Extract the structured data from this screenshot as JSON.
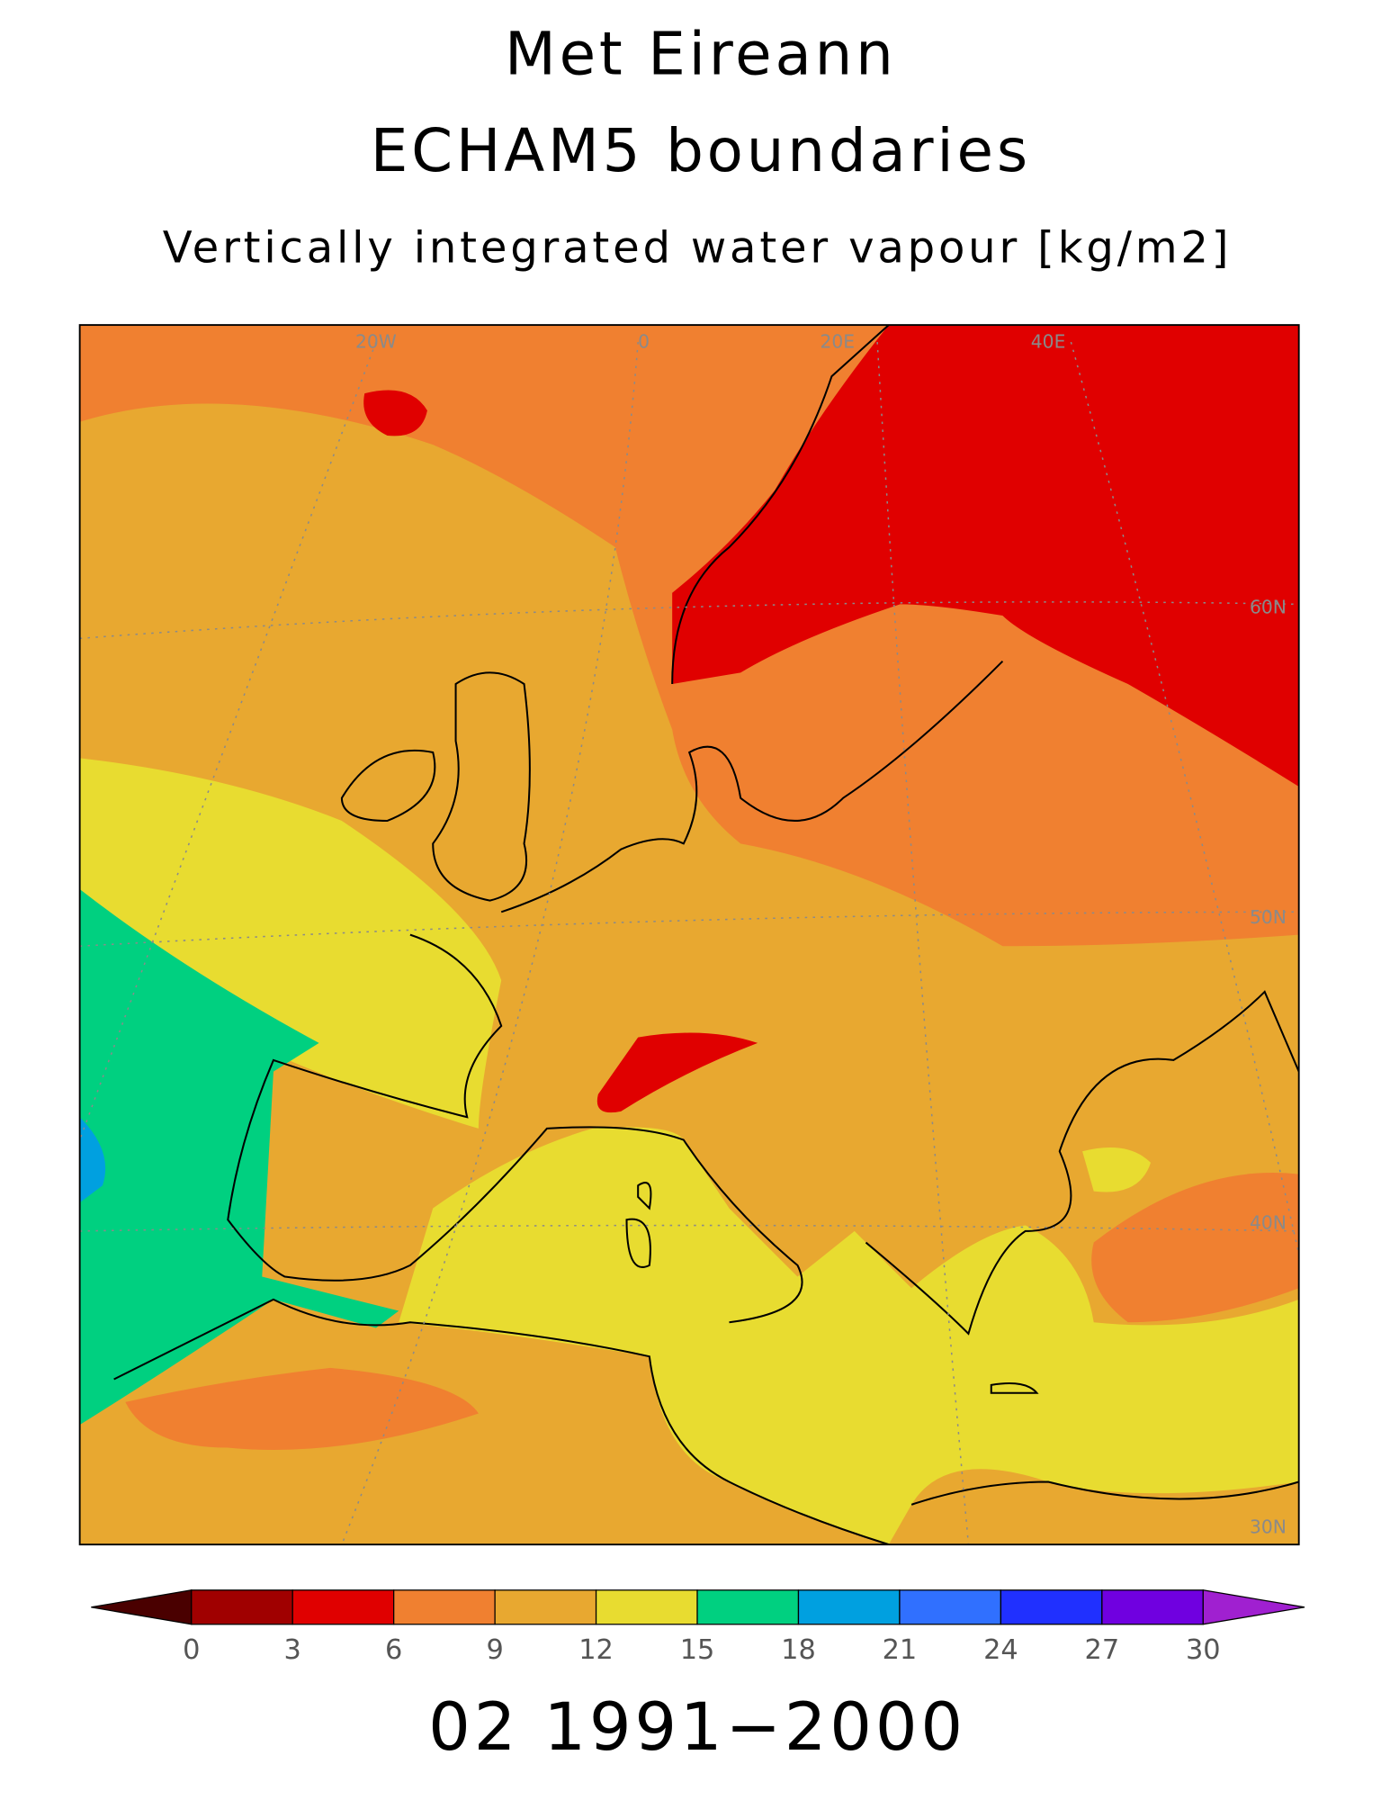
{
  "title": [
    "Met Eireann",
    "ECHAM5 boundaries",
    "Vertically integrated water vapour [kg/m2]"
  ],
  "footer": "02 1991−2000",
  "graticule_labels": [
    "20W",
    "0",
    "20E",
    "40E",
    "60N",
    "50N",
    "40N",
    "30N"
  ],
  "colorbar": {
    "ticks": [
      0,
      3,
      6,
      9,
      12,
      15,
      18,
      21,
      24,
      27,
      30
    ],
    "colors": [
      "#4a0000",
      "#a00000",
      "#e00000",
      "#f08030",
      "#e8a830",
      "#e8dc30",
      "#00d080",
      "#00a0e0",
      "#3070ff",
      "#2030ff",
      "#7000e0",
      "#a020d0"
    ]
  }
}
